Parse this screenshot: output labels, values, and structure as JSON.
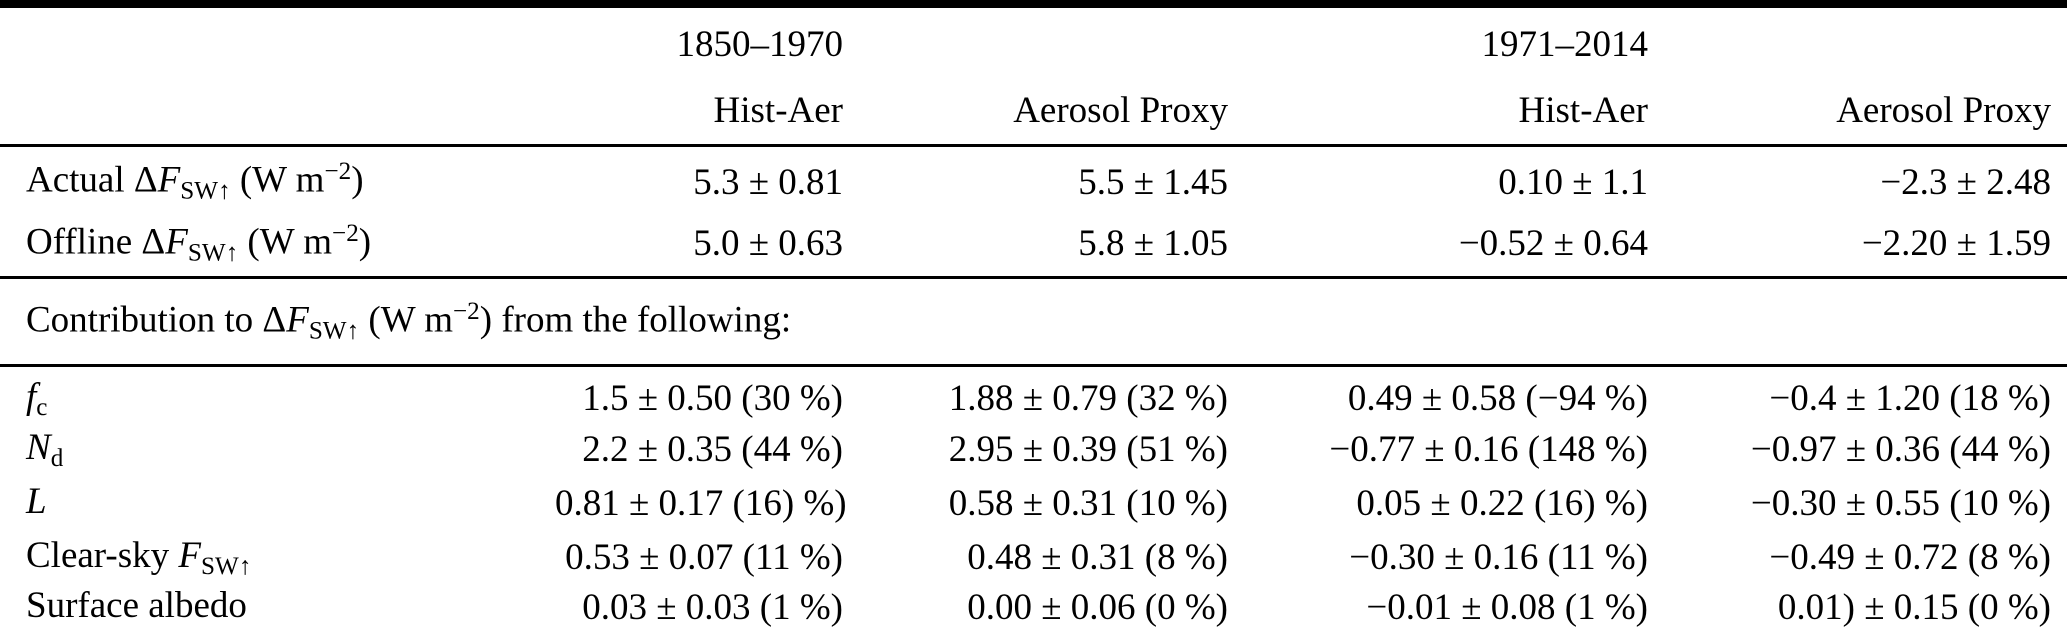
{
  "page": {
    "background": "#ffffff",
    "text_color": "#000000",
    "rule_color": "#000000"
  },
  "table": {
    "group_headers": [
      {
        "years": "1850–1970"
      },
      {
        "years": "1971–2014"
      }
    ],
    "column_headers": [
      "Hist-Aer",
      "Aerosol Proxy",
      "Hist-Aer",
      "Aerosol Proxy"
    ],
    "top_rows": [
      {
        "label": {
          "pre": "Actual Δ",
          "var": "F",
          "sub": "SW↑",
          "mid": " (W m",
          "sup": "−2",
          "post": ")"
        },
        "values": [
          "5.3 ± 0.81",
          "5.5 ± 1.45",
          "0.10 ± 1.1",
          "−2.3 ± 2.48"
        ]
      },
      {
        "label": {
          "pre": "Offline Δ",
          "var": "F",
          "sub": "SW↑",
          "mid": " (W m",
          "sup": "−2",
          "post": ")"
        },
        "values": [
          "5.0 ± 0.63",
          "5.8 ± 1.05",
          "−0.52 ± 0.64",
          "−2.20 ± 1.59"
        ]
      }
    ],
    "section_header": {
      "pre": "Contribution to Δ",
      "var": "F",
      "sub": "SW↑",
      "mid": " (W m",
      "sup": "−2",
      "post": ") from the following:"
    },
    "contribution_rows": [
      {
        "label": {
          "var": "f",
          "sub": "c"
        },
        "values": [
          "1.5 ± 0.50 (30 %)",
          "1.88 ± 0.79 (32 %)",
          "0.49 ± 0.58 (−94 %)",
          "−0.4 ± 1.20 (18 %)"
        ]
      },
      {
        "label": {
          "var": "N",
          "sub": "d"
        },
        "values": [
          "2.2 ± 0.35 (44 %)",
          "2.95 ± 0.39 (51 %)",
          "−0.77 ± 0.16 (148 %)",
          "−0.97 ± 0.36 (44 %)"
        ]
      },
      {
        "label": {
          "var": "L"
        },
        "values": [
          "0.81 ± 0.17 (16) %)",
          "0.58 ± 0.31 (10 %)",
          "0.05 ± 0.22 (16) %)",
          "−0.30 ± 0.55 (10 %)"
        ]
      },
      {
        "label": {
          "pre": "Clear-sky ",
          "var": "F",
          "sub": "SW↑"
        },
        "values": [
          "0.53 ± 0.07 (11 %)",
          "0.48 ± 0.31 (8 %)",
          "−0.30 ± 0.16 (11 %)",
          "−0.49 ± 0.72 (8 %)"
        ]
      },
      {
        "label": {
          "pre": "Surface albedo"
        },
        "values": [
          "0.03 ± 0.03 (1 %)",
          "0.00 ± 0.06 (0 %)",
          "−0.01 ± 0.08 (1 %)",
          "0.01) ± 0.15 (0 %)"
        ]
      }
    ]
  }
}
